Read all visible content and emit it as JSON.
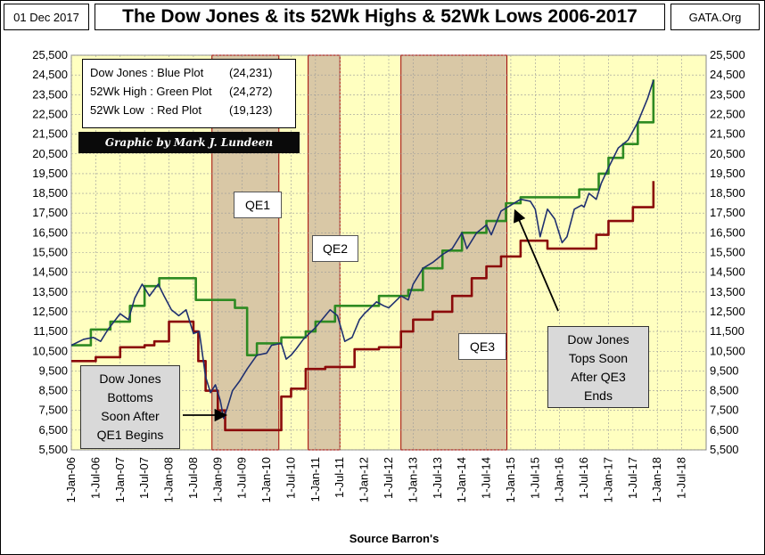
{
  "header": {
    "date": "01 Dec 2017",
    "title": "The Dow Jones & its 52Wk Highs & 52Wk Lows 2006-2017",
    "site": "GATA.Org"
  },
  "legend": {
    "rows": [
      {
        "name": "Dow Jones : Blue Plot",
        "value": "(24,231)"
      },
      {
        "name": "52Wk High : Green Plot",
        "value": "(24,272)"
      },
      {
        "name": "52Wk Low  : Red Plot",
        "value": "(19,123)"
      }
    ]
  },
  "credit": "Graphic by Mark J. Lundeen",
  "qe_labels": {
    "qe1": "QE1",
    "qe2": "QE2",
    "qe3": "QE3"
  },
  "notes": {
    "bottom": [
      "Dow Jones",
      "Bottoms",
      "Soon After",
      "QE1 Begins"
    ],
    "top": [
      "Dow Jones",
      "Tops Soon",
      "After QE3",
      "Ends"
    ]
  },
  "colors": {
    "plot_bg": "#ffffc0",
    "band": "#d9c8a6",
    "band_border": "#a00000",
    "dow": "#1f3070",
    "high": "#2e8b22",
    "low": "#8b0a0a"
  },
  "chart_data": {
    "type": "line",
    "title": "The Dow Jones & its 52Wk Highs & 52Wk Lows 2006-2017",
    "xlabel": "Source Barron's",
    "ylabel": "",
    "ylim": [
      5500,
      25500
    ],
    "xlim": [
      2006.0,
      2019.0
    ],
    "yticks": [
      5500,
      6500,
      7500,
      8500,
      9500,
      10500,
      11500,
      12500,
      13500,
      14500,
      15500,
      16500,
      17500,
      18500,
      19500,
      20500,
      21500,
      22500,
      23500,
      24500,
      25500
    ],
    "ytick_labels": [
      "5,500",
      "6,500",
      "7,500",
      "8,500",
      "9,500",
      "10,500",
      "11,500",
      "12,500",
      "13,500",
      "14,500",
      "15,500",
      "16,500",
      "17,500",
      "18,500",
      "19,500",
      "20,500",
      "21,500",
      "22,500",
      "23,500",
      "24,500",
      "25,500"
    ],
    "xticks": [
      2006.0,
      2006.5,
      2007.0,
      2007.5,
      2008.0,
      2008.5,
      2009.0,
      2009.5,
      2010.0,
      2010.5,
      2011.0,
      2011.5,
      2012.0,
      2012.5,
      2013.0,
      2013.5,
      2014.0,
      2014.5,
      2015.0,
      2015.5,
      2016.0,
      2016.5,
      2017.0,
      2017.5,
      2018.0,
      2018.5
    ],
    "xtick_labels": [
      "1-Jan-06",
      "1-Jul-06",
      "1-Jan-07",
      "1-Jul-07",
      "1-Jan-08",
      "1-Jul-08",
      "1-Jan-09",
      "1-Jul-09",
      "1-Jan-10",
      "1-Jul-10",
      "1-Jan-11",
      "1-Jul-11",
      "1-Jan-12",
      "1-Jul-12",
      "1-Jan-13",
      "1-Jul-13",
      "1-Jan-14",
      "1-Jul-14",
      "1-Jan-15",
      "1-Jul-15",
      "1-Jan-16",
      "1-Jul-16",
      "1-Jan-17",
      "1-Jul-17",
      "1-Jan-18",
      "1-Jul-18"
    ],
    "bands": [
      {
        "name": "QE1",
        "start": 2008.88,
        "end": 2010.25
      },
      {
        "name": "QE2",
        "start": 2010.85,
        "end": 2011.5
      },
      {
        "name": "QE3",
        "start": 2012.75,
        "end": 2014.92
      }
    ],
    "series": [
      {
        "name": "Dow Jones",
        "color": "#1f3070",
        "x": [
          2006.0,
          2006.25,
          2006.45,
          2006.6,
          2006.75,
          2007.0,
          2007.17,
          2007.3,
          2007.45,
          2007.6,
          2007.78,
          2007.9,
          2008.05,
          2008.2,
          2008.35,
          2008.5,
          2008.62,
          2008.75,
          2008.85,
          2008.95,
          2009.05,
          2009.12,
          2009.19,
          2009.3,
          2009.45,
          2009.6,
          2009.8,
          2010.0,
          2010.1,
          2010.3,
          2010.4,
          2010.5,
          2010.6,
          2010.75,
          2011.0,
          2011.3,
          2011.45,
          2011.6,
          2011.75,
          2011.9,
          2012.0,
          2012.25,
          2012.4,
          2012.5,
          2012.75,
          2012.9,
          2013.0,
          2013.2,
          2013.4,
          2013.6,
          2013.8,
          2014.0,
          2014.1,
          2014.3,
          2014.5,
          2014.6,
          2014.8,
          2015.0,
          2015.2,
          2015.4,
          2015.5,
          2015.6,
          2015.75,
          2015.9,
          2016.05,
          2016.15,
          2016.3,
          2016.45,
          2016.5,
          2016.6,
          2016.75,
          2016.85,
          2017.0,
          2017.2,
          2017.4,
          2017.6,
          2017.8,
          2017.92
        ],
        "values": [
          10800,
          11100,
          11200,
          11000,
          11600,
          12400,
          12100,
          13200,
          13900,
          13300,
          13900,
          13300,
          12600,
          12300,
          12600,
          11400,
          11500,
          9200,
          8400,
          8800,
          8000,
          7100,
          7600,
          8500,
          9000,
          9600,
          10300,
          10400,
          10800,
          10900,
          10100,
          10300,
          10600,
          11100,
          11700,
          12600,
          12300,
          11000,
          11200,
          12100,
          12400,
          13000,
          12800,
          12700,
          13300,
          13100,
          13900,
          14700,
          15000,
          15400,
          15700,
          16500,
          15700,
          16500,
          16900,
          16400,
          17600,
          17900,
          18200,
          18100,
          17700,
          16300,
          17700,
          17200,
          16000,
          16300,
          17700,
          17900,
          17800,
          18500,
          18200,
          19000,
          19800,
          20800,
          21200,
          22100,
          23300,
          24231
        ]
      },
      {
        "name": "52Wk High",
        "color": "#2e8b22",
        "x": [
          2006.0,
          2006.4,
          2006.8,
          2007.2,
          2007.5,
          2007.8,
          2008.5,
          2008.55,
          2008.9,
          2009.35,
          2009.6,
          2009.8,
          2010.3,
          2010.5,
          2010.8,
          2011.0,
          2011.4,
          2011.8,
          2012.3,
          2012.6,
          2012.9,
          2013.2,
          2013.6,
          2014.0,
          2014.5,
          2014.9,
          2015.2,
          2016.3,
          2016.4,
          2016.55,
          2016.8,
          2017.0,
          2017.3,
          2017.6,
          2017.92
        ],
        "values": [
          10800,
          11600,
          12000,
          12800,
          13800,
          14200,
          14200,
          13100,
          13100,
          12700,
          10300,
          10900,
          11200,
          11200,
          11500,
          12000,
          12800,
          12800,
          13300,
          13300,
          13600,
          14700,
          15600,
          16500,
          17100,
          18000,
          18300,
          18300,
          18700,
          18700,
          19500,
          20300,
          21000,
          22100,
          24272
        ]
      },
      {
        "name": "52Wk Low",
        "color": "#8b0a0a",
        "x": [
          2006.0,
          2006.5,
          2007.0,
          2007.5,
          2007.7,
          2008.0,
          2008.2,
          2008.5,
          2008.6,
          2008.75,
          2009.0,
          2009.15,
          2010.15,
          2010.3,
          2010.5,
          2010.8,
          2011.2,
          2011.5,
          2011.8,
          2012.3,
          2012.75,
          2013.0,
          2013.4,
          2013.8,
          2014.2,
          2014.5,
          2014.8,
          2015.2,
          2015.75,
          2016.05,
          2016.5,
          2016.75,
          2017.0,
          2017.5,
          2017.85,
          2017.92
        ],
        "values": [
          10000,
          10200,
          10700,
          10800,
          11000,
          12000,
          12000,
          11500,
          10000,
          8500,
          7500,
          6500,
          6500,
          8200,
          8600,
          9600,
          9700,
          9700,
          10600,
          10700,
          11500,
          12100,
          12500,
          13300,
          14200,
          14800,
          15300,
          16100,
          15700,
          15700,
          15700,
          16400,
          17100,
          17800,
          17800,
          19123
        ]
      }
    ]
  },
  "axes": {
    "xlabel": "Source Barron's"
  }
}
